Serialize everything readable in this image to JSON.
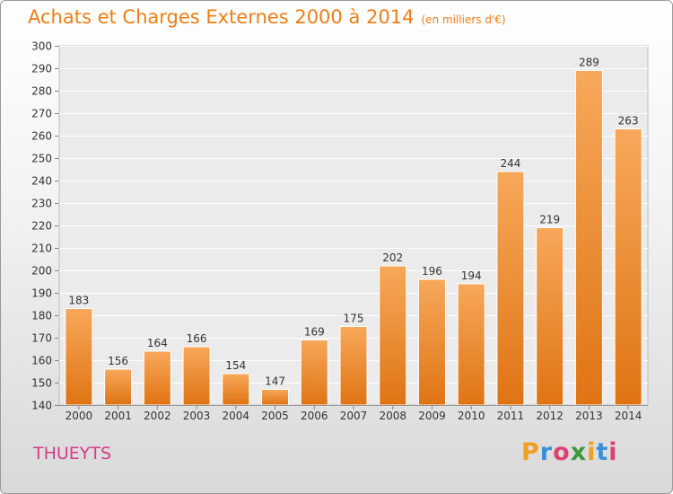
{
  "title": "Achats et Charges Externes 2000 à 2014",
  "subtitle": "(en milliers d'€)",
  "place": "THUEYTS",
  "brand": {
    "name": "Proxiti",
    "letters": [
      "P",
      "r",
      "o",
      "x",
      "i",
      "t",
      "i"
    ],
    "colors": [
      "#f0a020",
      "#3a8fd8",
      "#e04070",
      "#3a9a3a",
      "#f0a020",
      "#3a8fd8",
      "#e04070"
    ]
  },
  "colors": {
    "bar": "#f08a28",
    "title": "#f07d14",
    "place": "#d93a8a"
  },
  "chart_data": {
    "type": "bar",
    "title": "Achats et Charges Externes 2000 à 2014",
    "subtitle": "(en milliers d'€)",
    "categories": [
      "2000",
      "2001",
      "2002",
      "2003",
      "2004",
      "2005",
      "2006",
      "2007",
      "2008",
      "2009",
      "2010",
      "2011",
      "2012",
      "2013",
      "2014"
    ],
    "values": [
      183,
      156,
      164,
      166,
      154,
      147,
      169,
      175,
      202,
      196,
      194,
      244,
      219,
      289,
      263
    ],
    "ylim": [
      140,
      300
    ],
    "yticks": [
      140,
      150,
      160,
      170,
      180,
      190,
      200,
      210,
      220,
      230,
      240,
      250,
      260,
      270,
      280,
      290,
      300
    ],
    "grid": true,
    "data_labels": true
  }
}
